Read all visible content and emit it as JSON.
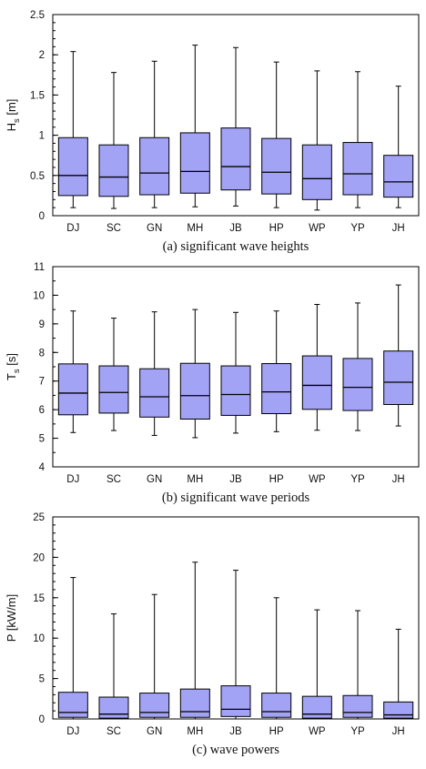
{
  "chart_data": [
    {
      "type": "box",
      "caption": "(a) significant wave heights",
      "ylabel": {
        "main": "H",
        "sub": "s",
        "unit": " [m]"
      },
      "categories": [
        "DJ",
        "SC",
        "GN",
        "MH",
        "JB",
        "HP",
        "WP",
        "YP",
        "JH"
      ],
      "ylim": [
        0,
        2.5
      ],
      "yticks": [
        "0",
        "0.5",
        "1",
        "1.5",
        "2",
        "2.5"
      ],
      "ytick_values": [
        0,
        0.5,
        1,
        1.5,
        2,
        2.5
      ],
      "minor_step": 0.1,
      "box_color": "#a3a3f6",
      "boxes": [
        {
          "min": 0.1,
          "q1": 0.25,
          "median": 0.5,
          "q3": 0.97,
          "max": 2.04
        },
        {
          "min": 0.09,
          "q1": 0.24,
          "median": 0.48,
          "q3": 0.88,
          "max": 1.78
        },
        {
          "min": 0.1,
          "q1": 0.26,
          "median": 0.53,
          "q3": 0.97,
          "max": 1.92
        },
        {
          "min": 0.11,
          "q1": 0.28,
          "median": 0.55,
          "q3": 1.03,
          "max": 2.12
        },
        {
          "min": 0.12,
          "q1": 0.32,
          "median": 0.61,
          "q3": 1.09,
          "max": 2.09
        },
        {
          "min": 0.1,
          "q1": 0.27,
          "median": 0.54,
          "q3": 0.96,
          "max": 1.91
        },
        {
          "min": 0.07,
          "q1": 0.2,
          "median": 0.46,
          "q3": 0.88,
          "max": 1.8
        },
        {
          "min": 0.1,
          "q1": 0.26,
          "median": 0.52,
          "q3": 0.91,
          "max": 1.79
        },
        {
          "min": 0.1,
          "q1": 0.23,
          "median": 0.42,
          "q3": 0.75,
          "max": 1.61
        }
      ]
    },
    {
      "type": "box",
      "caption": "(b) significant wave periods",
      "ylabel": {
        "main": "T",
        "sub": "s",
        "unit": " [s]"
      },
      "categories": [
        "DJ",
        "SC",
        "GN",
        "MH",
        "JB",
        "HP",
        "WP",
        "YP",
        "JH"
      ],
      "ylim": [
        4,
        11
      ],
      "yticks": [
        "4",
        "5",
        "6",
        "7",
        "8",
        "9",
        "10",
        "11"
      ],
      "ytick_values": [
        4,
        5,
        6,
        7,
        8,
        9,
        10,
        11
      ],
      "minor_step": 0.5,
      "box_color": "#a3a3f6",
      "boxes": [
        {
          "min": 5.2,
          "q1": 5.82,
          "median": 6.58,
          "q3": 7.6,
          "max": 9.45
        },
        {
          "min": 5.27,
          "q1": 5.88,
          "median": 6.6,
          "q3": 7.53,
          "max": 9.2
        },
        {
          "min": 5.1,
          "q1": 5.74,
          "median": 6.45,
          "q3": 7.43,
          "max": 9.42
        },
        {
          "min": 5.02,
          "q1": 5.67,
          "median": 6.49,
          "q3": 7.62,
          "max": 9.5
        },
        {
          "min": 5.18,
          "q1": 5.8,
          "median": 6.53,
          "q3": 7.53,
          "max": 9.4
        },
        {
          "min": 5.23,
          "q1": 5.86,
          "median": 6.62,
          "q3": 7.61,
          "max": 9.45
        },
        {
          "min": 5.28,
          "q1": 6.01,
          "median": 6.85,
          "q3": 7.88,
          "max": 9.68
        },
        {
          "min": 5.27,
          "q1": 5.97,
          "median": 6.78,
          "q3": 7.79,
          "max": 9.73
        },
        {
          "min": 5.43,
          "q1": 6.18,
          "median": 6.96,
          "q3": 8.05,
          "max": 10.36
        }
      ]
    },
    {
      "type": "box",
      "caption": "(c) wave powers",
      "ylabel": {
        "main": "P",
        "sub": "",
        "unit": " [kW/m]"
      },
      "categories": [
        "DJ",
        "SC",
        "GN",
        "MH",
        "JB",
        "HP",
        "WP",
        "YP",
        "JH"
      ],
      "ylim": [
        0,
        25
      ],
      "yticks": [
        "0",
        "5",
        "10",
        "15",
        "20",
        "25"
      ],
      "ytick_values": [
        0,
        5,
        10,
        15,
        20,
        25
      ],
      "minor_step": 1,
      "box_color": "#a3a3f6",
      "boxes": [
        {
          "min": 0.0,
          "q1": 0.2,
          "median": 0.8,
          "q3": 3.3,
          "max": 17.5
        },
        {
          "min": 0.0,
          "q1": 0.1,
          "median": 0.6,
          "q3": 2.7,
          "max": 13.0
        },
        {
          "min": 0.0,
          "q1": 0.2,
          "median": 0.8,
          "q3": 3.2,
          "max": 15.4
        },
        {
          "min": 0.0,
          "q1": 0.2,
          "median": 0.9,
          "q3": 3.7,
          "max": 19.4
        },
        {
          "min": 0.0,
          "q1": 0.3,
          "median": 1.2,
          "q3": 4.1,
          "max": 18.4
        },
        {
          "min": 0.0,
          "q1": 0.2,
          "median": 0.9,
          "q3": 3.2,
          "max": 15.0
        },
        {
          "min": 0.0,
          "q1": 0.1,
          "median": 0.6,
          "q3": 2.8,
          "max": 13.5
        },
        {
          "min": 0.0,
          "q1": 0.2,
          "median": 0.8,
          "q3": 2.9,
          "max": 13.4
        },
        {
          "min": 0.0,
          "q1": 0.1,
          "median": 0.5,
          "q3": 2.1,
          "max": 11.1
        }
      ]
    }
  ]
}
